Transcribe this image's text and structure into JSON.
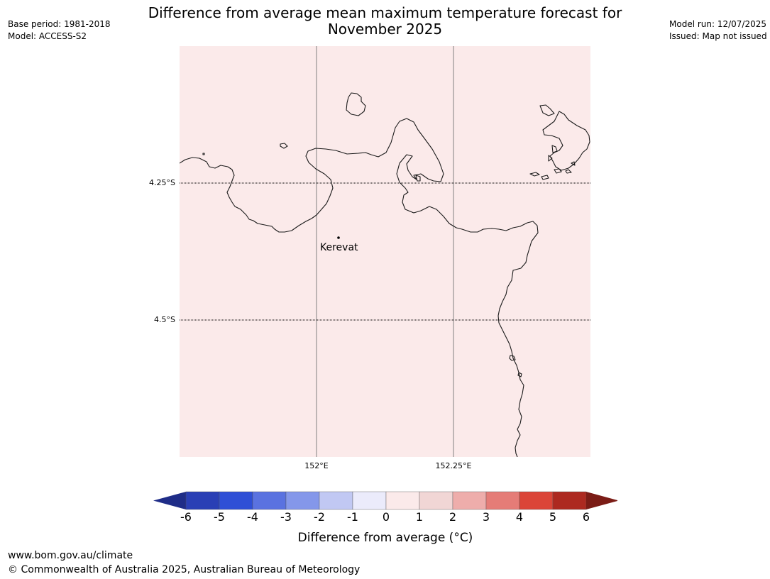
{
  "header": {
    "base_period": "Base period: 1981-2018",
    "model": "Model: ACCESS-S2",
    "model_run": "Model run: 12/07/2025",
    "issued": "Issued: Map not issued",
    "title_line1": "Difference from average mean maximum temperature forecast for",
    "title_line2": "November 2025"
  },
  "map": {
    "background_color": "#fbeaea",
    "gridlines": {
      "latitudes": [
        "4.25°S",
        "4.5°S"
      ],
      "longitudes": [
        "152°E",
        "152.25°E"
      ]
    },
    "places": [
      {
        "name": "Kerevat"
      }
    ]
  },
  "colorbar": {
    "ticks": [
      "-6",
      "-5",
      "-4",
      "-3",
      "-2",
      "-1",
      "0",
      "1",
      "2",
      "3",
      "4",
      "5",
      "6"
    ],
    "colors": [
      "#1f2d88",
      "#2a3fb5",
      "#2f4fd6",
      "#5a72e0",
      "#8497ea",
      "#c1c8f3",
      "#ebebfb",
      "#fbeaea",
      "#f1d6d5",
      "#eeadab",
      "#e57c77",
      "#db4538",
      "#ad2920",
      "#7b1c16"
    ],
    "label": "Difference from average (",
    "label_unit": "°C)"
  },
  "footer": {
    "url": "www.bom.gov.au/climate",
    "copyright": "© Commonwealth of Australia 2025, Australian Bureau of Meteorology"
  }
}
